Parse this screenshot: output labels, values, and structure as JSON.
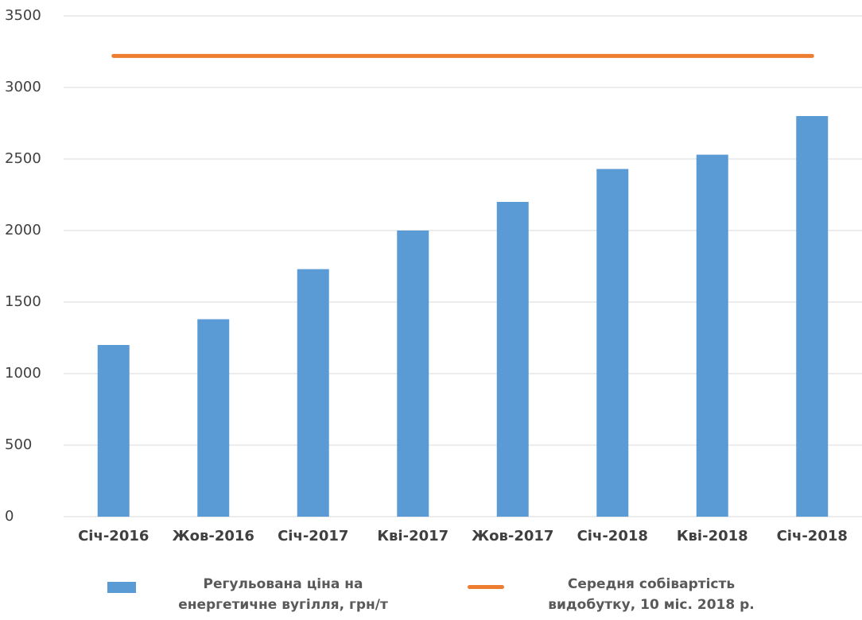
{
  "chart_data": {
    "type": "bar",
    "categories": [
      "Січ-2016",
      "Жов-2016",
      "Січ-2017",
      "Кві-2017",
      "Жов-2017",
      "Січ-2018",
      "Кві-2018",
      "Січ-2018"
    ],
    "series": [
      {
        "name": "Регульована ціна на енергетичне вугілля, грн/т",
        "type": "bar",
        "color": "#5b9bd5",
        "values": [
          1200,
          1380,
          1730,
          2000,
          2200,
          2430,
          2530,
          2800
        ]
      },
      {
        "name": "Середня собівартість видобутку, 10 міс. 2018 р.",
        "type": "line",
        "color": "#ed7d31",
        "values": [
          3220,
          3220,
          3220,
          3220,
          3220,
          3220,
          3220,
          3220
        ]
      }
    ],
    "ylim": [
      0,
      3500
    ],
    "yticks": [
      0,
      500,
      1000,
      1500,
      2000,
      2500,
      3000,
      3500
    ],
    "grid": true,
    "legend": "bottom"
  }
}
